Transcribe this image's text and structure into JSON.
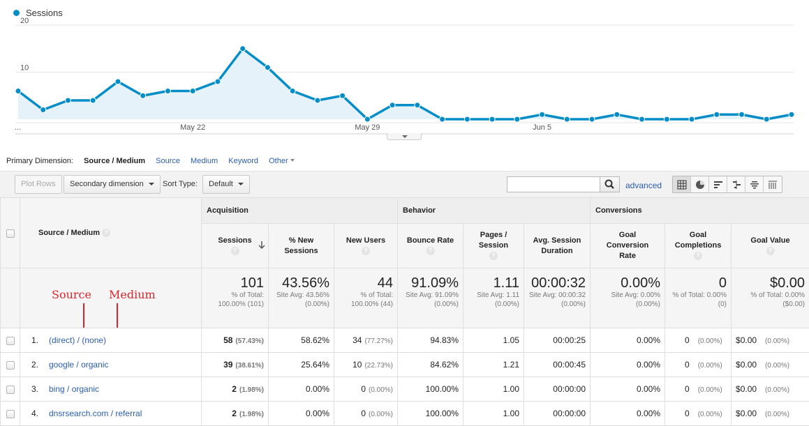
{
  "chart": {
    "legend_label": "Sessions",
    "series_color": "#058dc7",
    "y_ticks": [
      "20",
      "10"
    ],
    "y_max": 20,
    "x_labels": [
      {
        "index": 0,
        "text": "..."
      },
      {
        "index": 7,
        "text": "May 22"
      },
      {
        "index": 14,
        "text": "May 29"
      },
      {
        "index": 21,
        "text": "Jun 5"
      }
    ],
    "values": [
      6,
      2,
      4,
      4,
      8,
      5,
      6,
      6,
      8,
      15,
      11,
      6,
      4,
      5,
      0,
      3,
      3,
      0,
      0,
      0,
      0,
      1,
      0,
      0,
      1,
      0,
      0,
      0,
      1,
      1,
      0,
      1
    ]
  },
  "primary_dimension": {
    "label": "Primary Dimension:",
    "active": "Source / Medium",
    "links": [
      "Source",
      "Medium",
      "Keyword",
      "Other"
    ]
  },
  "toolbar": {
    "plot_rows": "Plot Rows",
    "secondary_dimension": "Secondary dimension",
    "sort_type_label": "Sort Type:",
    "sort_type_value": "Default",
    "search_placeholder": "",
    "advanced": "advanced"
  },
  "table": {
    "groups": {
      "acquisition": "Acquisition",
      "behavior": "Behavior",
      "conversions": "Conversions"
    },
    "dimension_header": "Source / Medium",
    "columns": {
      "sessions": "Sessions",
      "new_sessions": "% New Sessions",
      "new_users": "New Users",
      "bounce_rate": "Bounce Rate",
      "pages_session": "Pages / Session",
      "avg_duration": "Avg. Session Duration",
      "goal_conv_rate": "Goal Conversion Rate",
      "goal_completions": "Goal Completions",
      "goal_value": "Goal Value"
    },
    "annotations": {
      "source": "Source",
      "medium": "Medium"
    },
    "totals": {
      "sessions": {
        "value": "101",
        "sub": "% of Total: 100.00% (101)"
      },
      "new_sessions": {
        "value": "43.56%",
        "sub": "Site Avg: 43.56% (0.00%)"
      },
      "new_users": {
        "value": "44",
        "sub": "% of Total: 100.00% (44)"
      },
      "bounce_rate": {
        "value": "91.09%",
        "sub": "Site Avg: 91.09% (0.00%)"
      },
      "pages_session": {
        "value": "1.11",
        "sub": "Site Avg: 1.11 (0.00%)"
      },
      "avg_duration": {
        "value": "00:00:32",
        "sub": "Site Avg: 00:00:32 (0.00%)"
      },
      "goal_conv_rate": {
        "value": "0.00%",
        "sub": "Site Avg: 0.00% (0.00%)"
      },
      "goal_completions": {
        "value": "0",
        "sub": "% of Total: 0.00% (0)"
      },
      "goal_value": {
        "value": "$0.00",
        "sub": "% of Total: 0.00% ($0.00)"
      }
    },
    "rows": [
      {
        "rank": "1.",
        "source": "(direct)",
        "medium": "(none)",
        "sessions": "58",
        "sessions_pct": "(57.43%)",
        "new_sessions": "58.62%",
        "new_users": "34",
        "new_users_pct": "(77.27%)",
        "bounce_rate": "94.83%",
        "pages_session": "1.05",
        "avg_duration": "00:00:25",
        "goal_conv_rate": "0.00%",
        "goal_completions": "0",
        "goal_completions_pct": "(0.00%)",
        "goal_value": "$0.00",
        "goal_value_pct": "(0.00%)"
      },
      {
        "rank": "2.",
        "source": "google",
        "medium": "organic",
        "sessions": "39",
        "sessions_pct": "(38.61%)",
        "new_sessions": "25.64%",
        "new_users": "10",
        "new_users_pct": "(22.73%)",
        "bounce_rate": "84.62%",
        "pages_session": "1.21",
        "avg_duration": "00:00:45",
        "goal_conv_rate": "0.00%",
        "goal_completions": "0",
        "goal_completions_pct": "(0.00%)",
        "goal_value": "$0.00",
        "goal_value_pct": "(0.00%)"
      },
      {
        "rank": "3.",
        "source": "bing",
        "medium": "organic",
        "sessions": "2",
        "sessions_pct": "(1.98%)",
        "new_sessions": "0.00%",
        "new_users": "0",
        "new_users_pct": "(0.00%)",
        "bounce_rate": "100.00%",
        "pages_session": "1.00",
        "avg_duration": "00:00:00",
        "goal_conv_rate": "0.00%",
        "goal_completions": "0",
        "goal_completions_pct": "(0.00%)",
        "goal_value": "$0.00",
        "goal_value_pct": "(0.00%)"
      },
      {
        "rank": "4.",
        "source": "dnsrsearch.com",
        "medium": "referral",
        "sessions": "2",
        "sessions_pct": "(1.98%)",
        "new_sessions": "0.00%",
        "new_users": "0",
        "new_users_pct": "(0.00%)",
        "bounce_rate": "100.00%",
        "pages_session": "1.00",
        "avg_duration": "00:00:00",
        "goal_conv_rate": "0.00%",
        "goal_completions": "0",
        "goal_completions_pct": "(0.00%)",
        "goal_value": "$0.00",
        "goal_value_pct": "(0.00%)"
      }
    ]
  }
}
